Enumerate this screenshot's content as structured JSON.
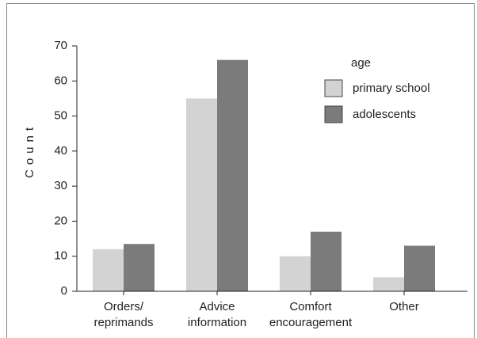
{
  "chart_data": {
    "type": "bar",
    "y_label": "Count",
    "legend_title": "age",
    "categories": [
      [
        "Orders/",
        "reprimands"
      ],
      [
        "Advice",
        "information"
      ],
      [
        "Comfort",
        "encouragement"
      ],
      [
        "Other"
      ]
    ],
    "series": [
      {
        "name": "primary school",
        "color": "#d3d3d3",
        "values": [
          12,
          55,
          10,
          4
        ]
      },
      {
        "name": "adolescents",
        "color": "#7b7b7b",
        "values": [
          13.5,
          66,
          17,
          13
        ]
      }
    ],
    "ylim": [
      0,
      70
    ],
    "yticks": [
      0,
      10,
      20,
      30,
      40,
      50,
      60,
      70
    ]
  }
}
